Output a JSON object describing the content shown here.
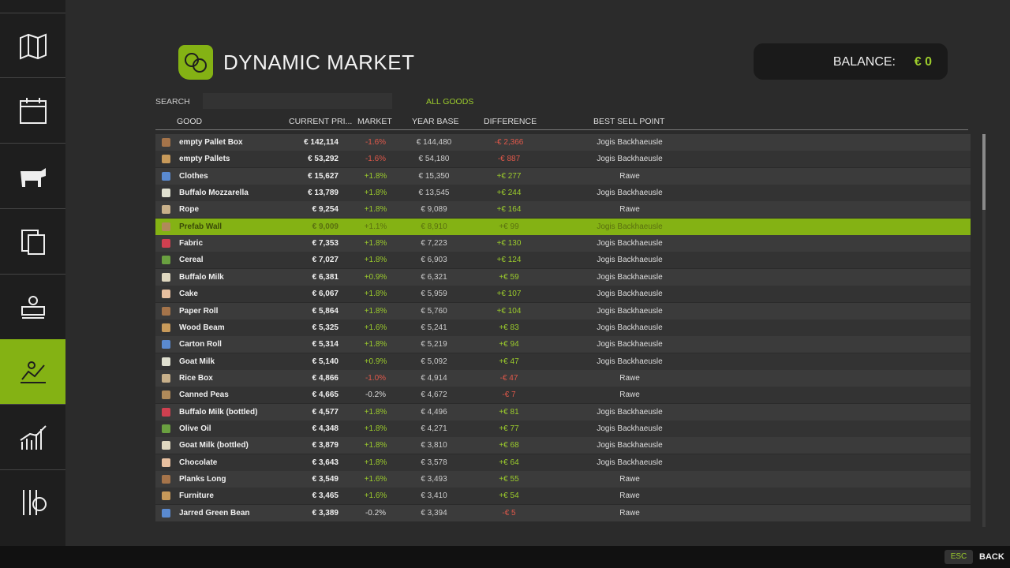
{
  "header": {
    "title": "DYNAMIC MARKET",
    "balance_label": "BALANCE:",
    "balance_value": "€ 0"
  },
  "search": {
    "label": "SEARCH",
    "filter": "ALL GOODS"
  },
  "table": {
    "columns": [
      "GOOD",
      "CURRENT PRI...",
      "MARKET",
      "YEAR BASE",
      "DIFFERENCE",
      "BEST SELL POINT"
    ],
    "rows": [
      [
        "empty Pallet Box",
        "€ 142,114",
        "-1.6%",
        "€ 144,480",
        "-€ 2,366",
        "Jogis Backhaeusle"
      ],
      [
        "empty Pallets",
        "€ 53,292",
        "-1.6%",
        "€ 54,180",
        "-€ 887",
        "Jogis Backhaeusle"
      ],
      [
        "Clothes",
        "€ 15,627",
        "+1.8%",
        "€ 15,350",
        "+€ 277",
        "Rawe"
      ],
      [
        "Buffalo Mozzarella",
        "€ 13,789",
        "+1.8%",
        "€ 13,545",
        "+€ 244",
        "Jogis Backhaeusle"
      ],
      [
        "Rope",
        "€ 9,254",
        "+1.8%",
        "€ 9,089",
        "+€ 164",
        "Rawe"
      ],
      [
        "Prefab Wall",
        "€ 9,009",
        "+1.1%",
        "€ 8,910",
        "+€ 99",
        "Jogis Backhaeusle"
      ],
      [
        "Fabric",
        "€ 7,353",
        "+1.8%",
        "€ 7,223",
        "+€ 130",
        "Jogis Backhaeusle"
      ],
      [
        "Cereal",
        "€ 7,027",
        "+1.8%",
        "€ 6,903",
        "+€ 124",
        "Jogis Backhaeusle"
      ],
      [
        "Buffalo Milk",
        "€ 6,381",
        "+0.9%",
        "€ 6,321",
        "+€ 59",
        "Jogis Backhaeusle"
      ],
      [
        "Cake",
        "€ 6,067",
        "+1.8%",
        "€ 5,959",
        "+€ 107",
        "Jogis Backhaeusle"
      ],
      [
        "Paper Roll",
        "€ 5,864",
        "+1.8%",
        "€ 5,760",
        "+€ 104",
        "Jogis Backhaeusle"
      ],
      [
        "Wood Beam",
        "€ 5,325",
        "+1.6%",
        "€ 5,241",
        "+€ 83",
        "Jogis Backhaeusle"
      ],
      [
        "Carton Roll",
        "€ 5,314",
        "+1.8%",
        "€ 5,219",
        "+€ 94",
        "Jogis Backhaeusle"
      ],
      [
        "Goat Milk",
        "€ 5,140",
        "+0.9%",
        "€ 5,092",
        "+€ 47",
        "Jogis Backhaeusle"
      ],
      [
        "Rice Box",
        "€ 4,866",
        "-1.0%",
        "€ 4,914",
        "-€ 47",
        "Rawe"
      ],
      [
        "Canned Peas",
        "€ 4,665",
        "-0.2%",
        "€ 4,672",
        "-€ 7",
        "Rawe"
      ],
      [
        "Buffalo Milk (bottled)",
        "€ 4,577",
        "+1.8%",
        "€ 4,496",
        "+€ 81",
        "Jogis Backhaeusle"
      ],
      [
        "Olive Oil",
        "€ 4,348",
        "+1.8%",
        "€ 4,271",
        "+€ 77",
        "Jogis Backhaeusle"
      ],
      [
        "Goat Milk (bottled)",
        "€ 3,879",
        "+1.8%",
        "€ 3,810",
        "+€ 68",
        "Jogis Backhaeusle"
      ],
      [
        "Chocolate",
        "€ 3,643",
        "+1.8%",
        "€ 3,578",
        "+€ 64",
        "Jogis Backhaeusle"
      ],
      [
        "Planks Long",
        "€ 3,549",
        "+1.6%",
        "€ 3,493",
        "+€ 55",
        "Rawe"
      ],
      [
        "Furniture",
        "€ 3,465",
        "+1.6%",
        "€ 3,410",
        "+€ 54",
        "Rawe"
      ],
      [
        "Jarred Green Bean",
        "€ 3,389",
        "-0.2%",
        "€ 3,394",
        "-€ 5",
        "Rawe"
      ]
    ],
    "selected_row": 5
  },
  "footer": {
    "key": "ESC",
    "action": "BACK"
  }
}
